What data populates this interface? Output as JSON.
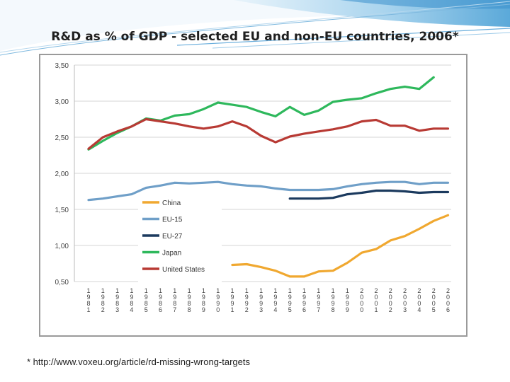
{
  "slide": {
    "title": "R&D as % of GDP - selected EU and non-EU countries, 2006*",
    "footnote": "* http://www.voxeu.org/article/rd-missing-wrong-targets"
  },
  "chart_data": {
    "type": "line",
    "title": "",
    "xlabel": "",
    "ylabel": "",
    "ylim": [
      0.5,
      3.5
    ],
    "yticks": [
      0.5,
      1.0,
      1.5,
      2.0,
      2.5,
      3.0,
      3.5
    ],
    "ytick_labels": [
      "0,50",
      "1,00",
      "1,50",
      "2,00",
      "2,50",
      "3,00",
      "3,50"
    ],
    "grid": true,
    "legend_placement": "center-left",
    "x": [
      1981,
      1982,
      1983,
      1984,
      1985,
      1986,
      1987,
      1988,
      1989,
      1990,
      1991,
      1992,
      1993,
      1994,
      1995,
      1996,
      1997,
      1998,
      1999,
      2000,
      2001,
      2002,
      2003,
      2004,
      2005,
      2006
    ],
    "xtick_labels": [
      [
        "1",
        "9",
        "8",
        "1"
      ],
      [
        "1",
        "9",
        "8",
        "2"
      ],
      [
        "1",
        "9",
        "8",
        "3"
      ],
      [
        "1",
        "9",
        "8",
        "4"
      ],
      [
        "1",
        "9",
        "8",
        "5"
      ],
      [
        "1",
        "9",
        "8",
        "6"
      ],
      [
        "1",
        "9",
        "8",
        "7"
      ],
      [
        "1",
        "9",
        "8",
        "8"
      ],
      [
        "1",
        "9",
        "8",
        "9"
      ],
      [
        "1",
        "9",
        "9",
        "0"
      ],
      [
        "1",
        "9",
        "9",
        "1"
      ],
      [
        "1",
        "9",
        "9",
        "2"
      ],
      [
        "1",
        "9",
        "9",
        "3"
      ],
      [
        "1",
        "9",
        "9",
        "4"
      ],
      [
        "1",
        "9",
        "9",
        "5"
      ],
      [
        "1",
        "9",
        "9",
        "6"
      ],
      [
        "1",
        "9",
        "9",
        "7"
      ],
      [
        "1",
        "9",
        "9",
        "8"
      ],
      [
        "1",
        "9",
        "9",
        "9"
      ],
      [
        "2",
        "0",
        "0",
        "0"
      ],
      [
        "2",
        "0",
        "0",
        "1"
      ],
      [
        "2",
        "0",
        "0",
        "2"
      ],
      [
        "2",
        "0",
        "0",
        "3"
      ],
      [
        "2",
        "0",
        "0",
        "4"
      ],
      [
        "2",
        "0",
        "0",
        "5"
      ],
      [
        "2",
        "0",
        "0",
        "6"
      ]
    ],
    "series": [
      {
        "name": "China",
        "color": "#f0a830",
        "values": [
          null,
          null,
          null,
          null,
          null,
          null,
          null,
          null,
          null,
          null,
          0.73,
          0.74,
          0.7,
          0.65,
          0.57,
          0.57,
          0.64,
          0.65,
          0.76,
          0.9,
          0.95,
          1.07,
          1.13,
          1.23,
          1.34,
          1.42
        ]
      },
      {
        "name": "EU-15",
        "color": "#6f9fc8",
        "values": [
          1.63,
          1.65,
          1.68,
          1.71,
          1.8,
          1.83,
          1.87,
          1.86,
          1.87,
          1.88,
          1.85,
          1.83,
          1.82,
          1.79,
          1.77,
          1.77,
          1.77,
          1.78,
          1.82,
          1.85,
          1.87,
          1.88,
          1.88,
          1.85,
          1.87,
          1.87
        ]
      },
      {
        "name": "EU-27",
        "color": "#1b3a5e",
        "values": [
          null,
          null,
          null,
          null,
          null,
          null,
          null,
          null,
          null,
          null,
          null,
          null,
          null,
          null,
          1.65,
          1.65,
          1.65,
          1.66,
          1.71,
          1.73,
          1.76,
          1.76,
          1.75,
          1.73,
          1.74,
          1.74
        ]
      },
      {
        "name": "Japan",
        "color": "#2eb85c",
        "values": [
          2.33,
          2.45,
          2.56,
          2.65,
          2.76,
          2.73,
          2.8,
          2.82,
          2.89,
          2.98,
          2.95,
          2.92,
          2.85,
          2.79,
          2.92,
          2.81,
          2.87,
          2.99,
          3.02,
          3.04,
          3.11,
          3.17,
          3.2,
          3.17,
          3.33,
          null
        ]
      },
      {
        "name": "United States",
        "color": "#b83a34",
        "values": [
          2.34,
          2.5,
          2.58,
          2.65,
          2.75,
          2.72,
          2.69,
          2.65,
          2.62,
          2.65,
          2.72,
          2.65,
          2.52,
          2.43,
          2.51,
          2.55,
          2.58,
          2.61,
          2.65,
          2.72,
          2.74,
          2.66,
          2.66,
          2.59,
          2.62,
          2.62
        ]
      }
    ]
  }
}
